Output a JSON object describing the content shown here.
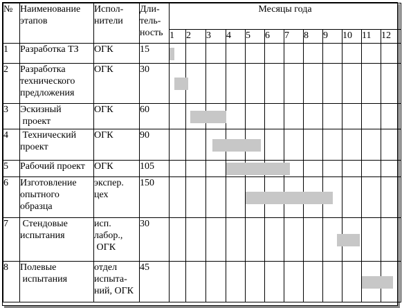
{
  "header": {
    "num": "№",
    "stage": "Наименование\nэтапов",
    "executors": "Испол-\nнители",
    "duration": "Дли-\nтель-\nность",
    "months_title": "Месяцы года",
    "months": [
      "1",
      "2",
      "3",
      "4",
      "5",
      "6",
      "7",
      "8",
      "9",
      "10",
      "11",
      "12"
    ]
  },
  "rows": [
    {
      "num": "1",
      "stage": "Разработка ТЗ",
      "executor": "ОГК",
      "duration": "15",
      "start_month": 1.0,
      "end_month": 1.3
    },
    {
      "num": "2",
      "stage": "Разработка\nтехнического\nпредложения",
      "executor": "ОГК",
      "duration": "30",
      "start_month": 1.3,
      "end_month": 2.1
    },
    {
      "num": "3",
      "stage": "Эскизный\n проект",
      "executor": "ОГК",
      "duration": "60",
      "start_month": 2.2,
      "end_month": 4.0
    },
    {
      "num": "4",
      "stage": " Технический\nпроект",
      "executor": "ОГК",
      "duration": "90",
      "start_month": 3.3,
      "end_month": 5.8
    },
    {
      "num": "5",
      "stage": "Рабочий проект",
      "executor": "ОГК",
      "duration": "105",
      "start_month": 4.0,
      "end_month": 7.3
    },
    {
      "num": "6",
      "stage": "Изготовление\nопытного\nобразца",
      "executor": "экспер.\nцех",
      "duration": "150",
      "start_month": 5.0,
      "end_month": 9.5
    },
    {
      "num": "7",
      "stage": " Стендовые\nиспытания",
      "executor": "исп.\nлабор.,\n ОГК",
      "duration": "30",
      "start_month": 9.7,
      "end_month": 10.9
    },
    {
      "num": "8",
      "stage": "Полевые\n испытания",
      "executor": "отдел\nиспыта-\nний, ОГК",
      "duration": "45",
      "start_month": 11.0,
      "end_month": 12.6
    }
  ],
  "bar_color": "#c7c7c7"
}
